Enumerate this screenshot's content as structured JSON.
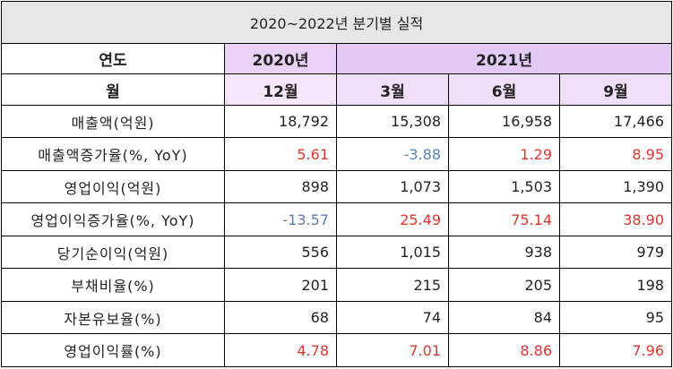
{
  "title": "2020~2022년 분기별 실적",
  "header": {
    "year_label": "연도",
    "month_label": "월",
    "year_2020": "2020년",
    "year_2021": "2021년",
    "months": [
      "12월",
      "3월",
      "6월",
      "9월"
    ]
  },
  "rows": [
    {
      "label": "매출액(억원)",
      "values": [
        "18,792",
        "15,308",
        "16,958",
        "17,466"
      ],
      "tones": [
        "",
        "",
        "",
        ""
      ]
    },
    {
      "label": "매출액증가율(%, YoY)",
      "values": [
        "5.61",
        "-3.88",
        "1.29",
        "8.95"
      ],
      "tones": [
        "red",
        "blue",
        "red",
        "red"
      ]
    },
    {
      "label": "영업이익(억원)",
      "values": [
        "898",
        "1,073",
        "1,503",
        "1,390"
      ],
      "tones": [
        "",
        "",
        "",
        ""
      ]
    },
    {
      "label": "영업이익증가율(%, YoY)",
      "values": [
        "-13.57",
        "25.49",
        "75.14",
        "38.90"
      ],
      "tones": [
        "blue",
        "red",
        "red",
        "red"
      ]
    },
    {
      "label": "당기순이익(억원)",
      "values": [
        "556",
        "1,015",
        "938",
        "979"
      ],
      "tones": [
        "",
        "",
        "",
        ""
      ]
    },
    {
      "label": "부채비율(%)",
      "values": [
        "201",
        "215",
        "205",
        "198"
      ],
      "tones": [
        "",
        "",
        "",
        ""
      ]
    },
    {
      "label": "자본유보율(%)",
      "values": [
        "68",
        "74",
        "84",
        "95"
      ],
      "tones": [
        "",
        "",
        "",
        ""
      ]
    },
    {
      "label": "영업이익률(%)",
      "values": [
        "4.78",
        "7.01",
        "8.86",
        "7.96"
      ],
      "tones": [
        "red",
        "red",
        "red",
        "red"
      ]
    }
  ],
  "colors": {
    "title_bg": "#e6e6e6",
    "header_2020_bg": "#ead1f7",
    "header_2021_bg": "#e2c9f6",
    "positive": "#e0342f",
    "negative": "#5b7fb2"
  }
}
